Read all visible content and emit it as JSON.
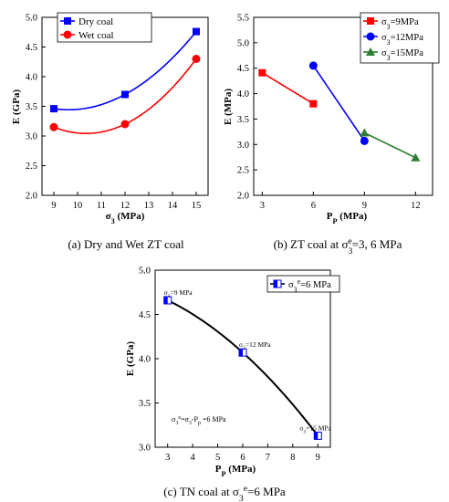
{
  "colors": {
    "blue": "#0000ff",
    "red": "#ff0000",
    "green": "#2e7d32",
    "black": "#000000"
  },
  "chart_data": [
    {
      "type": "line",
      "caption": "(a) Dry and Wet ZT coal",
      "xlabel": "σ3 (MPa)",
      "ylabel": "E (GPa)",
      "xlim": [
        8.5,
        15.5
      ],
      "ylim": [
        2.0,
        5.0
      ],
      "xticks": [
        9,
        10,
        11,
        12,
        13,
        14,
        15
      ],
      "yticks": [
        2.0,
        2.5,
        3.0,
        3.5,
        4.0,
        4.5,
        5.0
      ],
      "legend_position": "top-left",
      "series": [
        {
          "name": "Dry coal",
          "marker": "square",
          "color": "#0000ff",
          "x": [
            9,
            12,
            15
          ],
          "y": [
            3.46,
            3.7,
            4.76
          ],
          "fit": "quadratic"
        },
        {
          "name": "Wet coal",
          "marker": "circle",
          "color": "#ff0000",
          "x": [
            9,
            12,
            15
          ],
          "y": [
            3.15,
            3.2,
            4.3
          ],
          "fit": "quadratic"
        }
      ]
    },
    {
      "type": "line",
      "caption": "(b) ZT coal at σ3e=3, 6 MPa",
      "xlabel": "PP (MPa)",
      "ylabel": "E (MPa)",
      "xlim": [
        2.5,
        13
      ],
      "ylim": [
        2.0,
        5.5
      ],
      "xticks": [
        3,
        6,
        9,
        12
      ],
      "yticks": [
        2.0,
        2.5,
        3.0,
        3.5,
        4.0,
        4.5,
        5.0,
        5.5
      ],
      "legend_position": "top-right",
      "series": [
        {
          "name": "σ3=9MPa",
          "marker": "square",
          "color": "#ff0000",
          "x": [
            3,
            6
          ],
          "y": [
            4.41,
            3.8
          ]
        },
        {
          "name": "σ3=12MPa",
          "marker": "circle",
          "color": "#0000ff",
          "x": [
            6,
            9
          ],
          "y": [
            4.55,
            3.07
          ]
        },
        {
          "name": "σ3=15MPa",
          "marker": "triangle",
          "color": "#2e7d32",
          "x": [
            9,
            12
          ],
          "y": [
            3.23,
            2.74
          ]
        }
      ]
    },
    {
      "type": "line",
      "caption": "(c) TN coal at σ3e=6 MPa",
      "xlabel": "PP (MPa)",
      "ylabel": "E (GPa)",
      "xlim": [
        2.5,
        9.5
      ],
      "ylim": [
        3.0,
        5.0
      ],
      "xticks": [
        3,
        4,
        5,
        6,
        7,
        8,
        9
      ],
      "yticks": [
        3.0,
        3.5,
        4.0,
        4.5,
        5.0
      ],
      "legend_position": "top-right",
      "annotation": "σ3e=σ3-Pp =6 MPa",
      "series": [
        {
          "name": "σ3e=6 MPa",
          "marker": "half-square",
          "color": "#0000ff",
          "x": [
            3,
            6,
            9
          ],
          "y": [
            4.66,
            4.07,
            3.13
          ],
          "fit": "quadratic",
          "point_labels": [
            "σ3=9 MPa",
            "σ3=12 MPa",
            "σ3=15 MPa"
          ]
        }
      ]
    }
  ]
}
